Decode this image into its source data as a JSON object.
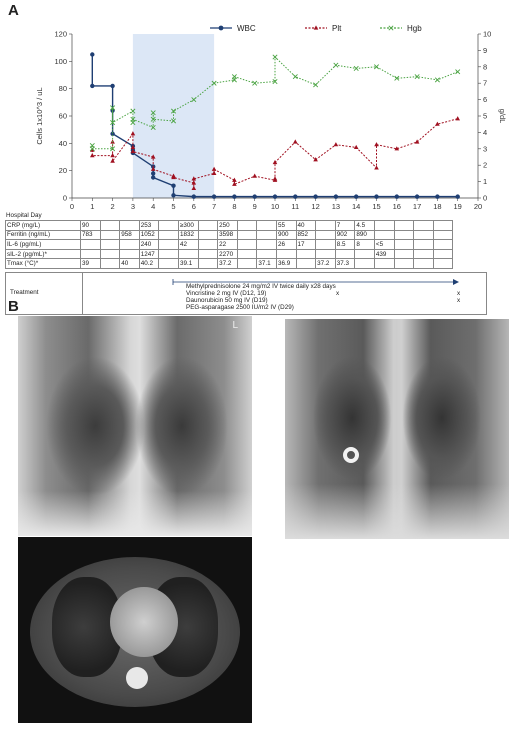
{
  "panel_a_label": "A",
  "panel_b_label": "B",
  "chart_data": {
    "type": "line",
    "x": [
      1,
      2,
      3,
      4,
      5,
      6,
      7,
      8,
      9,
      10,
      11,
      12,
      13,
      14,
      15,
      16,
      17,
      18,
      19
    ],
    "xlim": [
      0,
      20
    ],
    "x_ticks": [
      0,
      1,
      2,
      3,
      4,
      5,
      6,
      7,
      8,
      9,
      10,
      11,
      12,
      13,
      14,
      15,
      16,
      17,
      18,
      19,
      20
    ],
    "ylim_left": [
      0,
      120
    ],
    "y_ticks_left": [
      0,
      20,
      40,
      60,
      80,
      100,
      120
    ],
    "ylabel_left": "Cells 1x10^3 / uL",
    "ylim_right": [
      0,
      10
    ],
    "y_ticks_right": [
      0,
      1,
      2,
      3,
      4,
      5,
      6,
      7,
      8,
      9,
      10
    ],
    "ylabel_right": "g/dL",
    "shaded_region": [
      3,
      7
    ],
    "legend_position": "top-right",
    "series": [
      {
        "name": "WBC",
        "axis": "left",
        "color": "#1f3f73",
        "marker": "circle",
        "points": [
          [
            1,
            105
          ],
          [
            1,
            82
          ],
          [
            2,
            82
          ],
          [
            2,
            64
          ],
          [
            2,
            47
          ],
          [
            3,
            38
          ],
          [
            3,
            35
          ],
          [
            3,
            33
          ],
          [
            4,
            23
          ],
          [
            4,
            18
          ],
          [
            4,
            15
          ],
          [
            5,
            9
          ],
          [
            5,
            2
          ],
          [
            6,
            1
          ],
          [
            7,
            1
          ],
          [
            8,
            1
          ],
          [
            9,
            1
          ],
          [
            10,
            1
          ],
          [
            11,
            1
          ],
          [
            12,
            1
          ],
          [
            13,
            1
          ],
          [
            14,
            1
          ],
          [
            15,
            1
          ],
          [
            16,
            1
          ],
          [
            17,
            1
          ],
          [
            18,
            1
          ],
          [
            19,
            1
          ]
        ]
      },
      {
        "name": "Plt",
        "axis": "left",
        "color": "#a01020",
        "marker": "triangle",
        "points": [
          [
            1,
            35
          ],
          [
            1,
            31
          ],
          [
            2,
            31
          ],
          [
            2,
            41
          ],
          [
            2,
            27
          ],
          [
            3,
            47
          ],
          [
            3,
            37
          ],
          [
            3,
            34
          ],
          [
            4,
            30
          ],
          [
            4,
            21
          ],
          [
            5,
            16
          ],
          [
            5,
            15
          ],
          [
            6,
            11
          ],
          [
            6,
            7
          ],
          [
            6,
            14
          ],
          [
            7,
            18
          ],
          [
            7,
            21
          ],
          [
            8,
            13
          ],
          [
            8,
            10
          ],
          [
            9,
            16
          ],
          [
            10,
            13
          ],
          [
            10,
            14
          ],
          [
            10,
            26
          ],
          [
            11,
            41
          ],
          [
            12,
            28
          ],
          [
            13,
            39
          ],
          [
            14,
            37
          ],
          [
            15,
            22
          ],
          [
            15,
            39
          ],
          [
            16,
            36
          ],
          [
            17,
            41
          ],
          [
            18,
            54
          ],
          [
            19,
            58
          ]
        ]
      },
      {
        "name": "Hgb",
        "axis": "right",
        "color": "#4aa342",
        "marker": "x",
        "points": [
          [
            1,
            3.2
          ],
          [
            1,
            3.0
          ],
          [
            2,
            3.0
          ],
          [
            2,
            5.5
          ],
          [
            2,
            4.6
          ],
          [
            3,
            5.3
          ],
          [
            3,
            4.6
          ],
          [
            3,
            4.8
          ],
          [
            4,
            4.3
          ],
          [
            4,
            5.2
          ],
          [
            4,
            4.8
          ],
          [
            5,
            4.7
          ],
          [
            5,
            5.3
          ],
          [
            6,
            6.0
          ],
          [
            7,
            7.0
          ],
          [
            8,
            7.2
          ],
          [
            8,
            7.4
          ],
          [
            9,
            7.0
          ],
          [
            10,
            7.1
          ],
          [
            10,
            8.6
          ],
          [
            11,
            7.4
          ],
          [
            12,
            6.9
          ],
          [
            13,
            8.1
          ],
          [
            14,
            7.9
          ],
          [
            15,
            8.0
          ],
          [
            16,
            7.3
          ],
          [
            17,
            7.4
          ],
          [
            18,
            7.2
          ],
          [
            19,
            7.7
          ]
        ]
      }
    ]
  },
  "table": {
    "hospital_day_label": "Hospital Day",
    "rows": [
      {
        "label": "CRP (mg/L)",
        "values": [
          "90",
          "",
          "",
          "253",
          "",
          "≥300",
          "",
          "250",
          "",
          "",
          "55",
          "40",
          "",
          "7",
          "4.5",
          "",
          "",
          "",
          ""
        ]
      },
      {
        "label": "Ferritin (ng/mL)",
        "values": [
          "783",
          "",
          "958",
          "1052",
          "",
          "1832",
          "",
          "3598",
          "",
          "",
          "900",
          "852",
          "",
          "902",
          "890",
          "",
          "",
          "",
          ""
        ]
      },
      {
        "label": "IL-6 (pg/mL)",
        "values": [
          "",
          "",
          "",
          "240",
          "",
          "42",
          "",
          "22",
          "",
          "",
          "26",
          "17",
          "",
          "8.5",
          "8",
          "<5",
          "",
          "",
          ""
        ]
      },
      {
        "label": "sIL-2 (pg/mL)*",
        "values": [
          "",
          "",
          "",
          "1247",
          "",
          "",
          "",
          "2270",
          "",
          "",
          "",
          "",
          "",
          "",
          "",
          "439",
          "",
          "",
          ""
        ]
      },
      {
        "label": "Tmax (°C)*",
        "values": [
          "39",
          "",
          "40",
          "40.2",
          "",
          "39.1",
          "",
          "37.2",
          "",
          "37.1",
          "36.9",
          "",
          "37.2",
          "37.3",
          "",
          "",
          "",
          "",
          ""
        ]
      }
    ],
    "treatment_label": "Treatment",
    "treatments": [
      {
        "text": "Methylprednisolone 24 mg/m2 IV twice daily x28 days"
      },
      {
        "text": "Vincristine 2 mg IV (D12, 19)",
        "marks": [
          "x",
          "x"
        ]
      },
      {
        "text": "Daunorubicin 50 mg IV (D19)",
        "marks": [
          "x"
        ]
      },
      {
        "text": "PEG-asparagase 2500 IU/m2 IV (D29)"
      }
    ]
  },
  "images": {
    "xray1_marker": "L"
  }
}
